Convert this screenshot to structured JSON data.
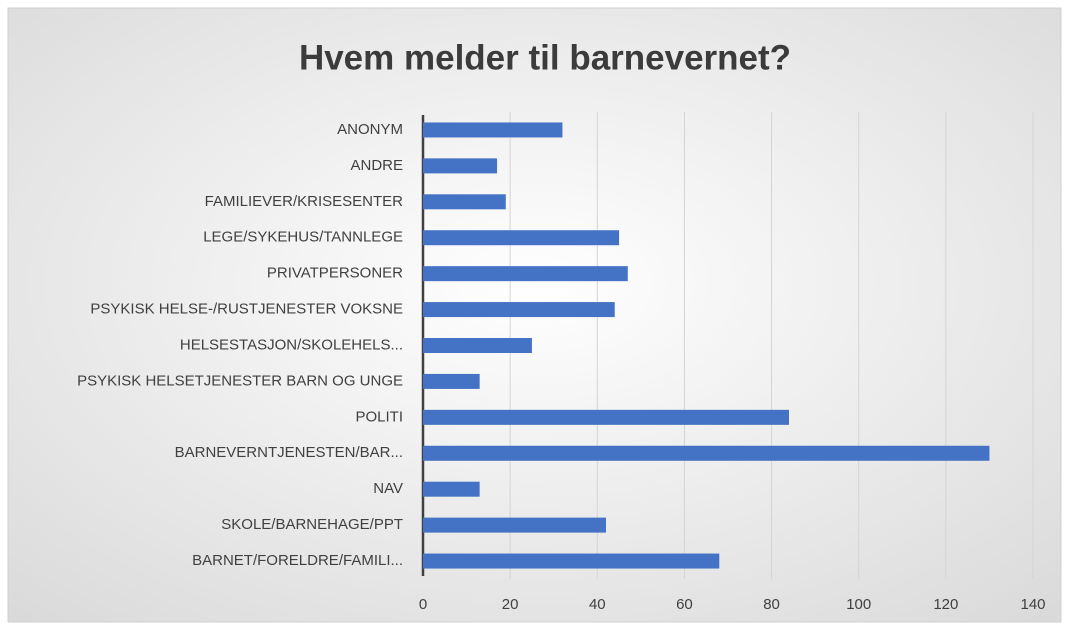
{
  "chart_data": {
    "type": "bar",
    "orientation": "horizontal",
    "title": "Hvem melder til barnevernet?",
    "categories": [
      "ANONYM",
      "ANDRE",
      "FAMILIEVER/KRISESENTER",
      "LEGE/SYKEHUS/TANNLEGE",
      "PRIVATPERSONER",
      "PSYKISK HELSE-/RUSTJENESTER VOKSNE",
      "HELSESTASJON/SKOLEHELS...",
      "PSYKISK HELSETJENESTER BARN OG UNGE",
      "POLITI",
      "BARNEVERNTJENESTEN/BAR...",
      "NAV",
      "SKOLE/BARNEHAGE/PPT",
      "BARNET/FORELDRE/FAMILI..."
    ],
    "values": [
      32,
      17,
      19,
      45,
      47,
      44,
      25,
      13,
      84,
      130,
      13,
      42,
      68
    ],
    "color": "#4472c4",
    "xlim": [
      0,
      140
    ],
    "xticks": [
      0,
      20,
      40,
      60,
      80,
      100,
      120,
      140
    ],
    "grid": true
  }
}
